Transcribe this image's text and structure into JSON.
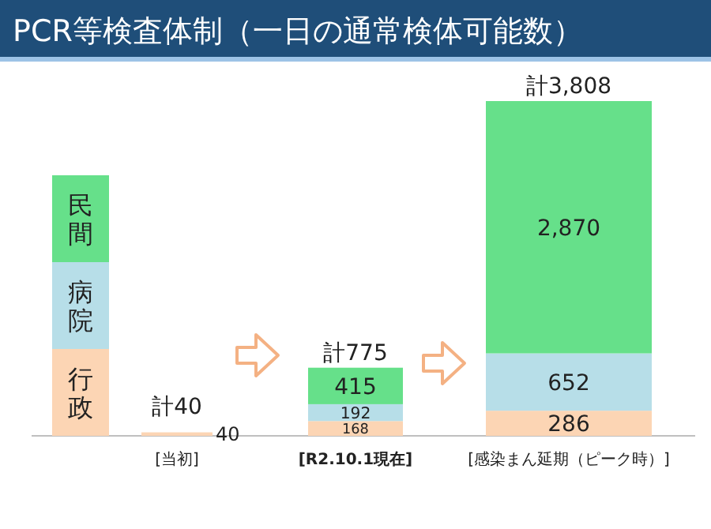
{
  "chart_data": {
    "type": "bar",
    "title": "PCR等検査体制（一日の通常検体可能数）",
    "categories": [
      "[当初]",
      "[R2.10.1現在]",
      "[感染まん延期（ピーク時）]"
    ],
    "stacked": true,
    "data_labels": true,
    "legend": "left",
    "totals": [
      "計40",
      "計775",
      "計3,808"
    ],
    "series": [
      {
        "name": "行政",
        "color": "#fcd5b4",
        "values": [
          40,
          168,
          286
        ]
      },
      {
        "name": "病院",
        "color": "#b7dee8",
        "values": [
          null,
          192,
          652
        ]
      },
      {
        "name": "民間",
        "color": "#66e08a",
        "values": [
          null,
          415,
          2870
        ],
        "value_labels": [
          null,
          "415",
          "2,870"
        ]
      }
    ]
  }
}
